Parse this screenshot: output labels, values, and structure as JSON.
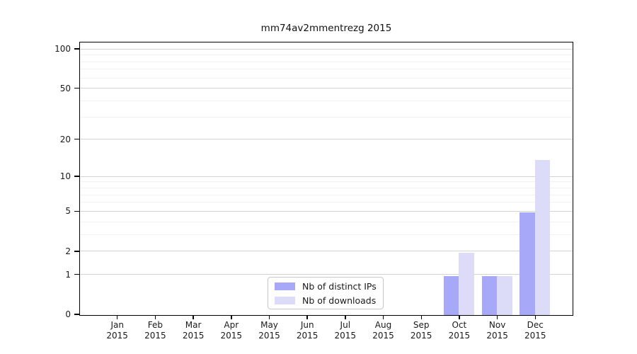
{
  "chart_data": {
    "type": "bar",
    "title": "mm74av2mmentrezg 2015",
    "categories": [
      "Jan 2015",
      "Feb 2015",
      "Mar 2015",
      "Apr 2015",
      "May 2015",
      "Jun 2015",
      "Jul 2015",
      "Aug 2015",
      "Sep 2015",
      "Oct 2015",
      "Nov 2015",
      "Dec 2015"
    ],
    "series": [
      {
        "name": "Nb of distinct IPs",
        "color": "#a8a8f8",
        "values": [
          0,
          0,
          0,
          0,
          0,
          0,
          0,
          0,
          0,
          1,
          1,
          5
        ]
      },
      {
        "name": "Nb of downloads",
        "color": "#dcdcf8",
        "values": [
          0,
          0,
          0,
          0,
          0,
          0,
          0,
          0,
          0,
          2,
          1,
          14
        ]
      }
    ],
    "xlabel": "",
    "ylabel": "",
    "yscale": "log1p",
    "ylim": [
      0,
      112
    ],
    "y_axis": {
      "major_ticks": [
        100,
        50,
        20,
        10,
        5,
        2,
        1,
        0
      ],
      "minor_gridlines": [
        3,
        4,
        6,
        7,
        8,
        9,
        30,
        40,
        60,
        70,
        80,
        90
      ]
    },
    "grid": true,
    "legend_position": "lower-center"
  }
}
